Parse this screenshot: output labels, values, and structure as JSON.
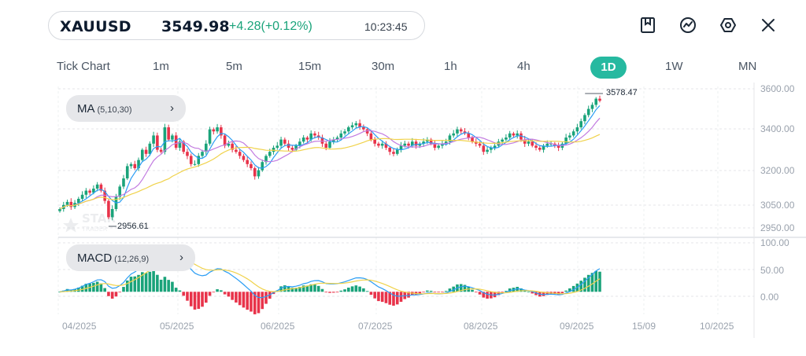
{
  "header": {
    "symbol": "XAUUSD",
    "price": "3549.98",
    "change": "+4.28(+0.12%)",
    "time": "10:23:45",
    "accent_up": "#1aa37a",
    "accent_down": "#e8334a"
  },
  "toolbar": {
    "icons": [
      "bookmark-icon",
      "indicator-icon",
      "settings-icon",
      "close-icon"
    ]
  },
  "timeframes": [
    {
      "label": "Tick Chart",
      "active": false
    },
    {
      "label": "1m",
      "active": false
    },
    {
      "label": "5m",
      "active": false
    },
    {
      "label": "15m",
      "active": false
    },
    {
      "label": "30m",
      "active": false
    },
    {
      "label": "1h",
      "active": false
    },
    {
      "label": "4h",
      "active": false
    },
    {
      "label": "1D",
      "active": true
    },
    {
      "label": "1W",
      "active": false
    },
    {
      "label": "MN",
      "active": false
    }
  ],
  "main_panel": {
    "indicator_name": "MA",
    "indicator_params": "(5,10,30)",
    "price_ticks": [
      "3600.00",
      "3400.00",
      "3200.00",
      "3050.00",
      "2950.00"
    ],
    "high_label": "3578.47",
    "low_label": "2956.61"
  },
  "macd_panel": {
    "indicator_name": "MACD",
    "indicator_params": "(12,26,9)",
    "ticks": [
      "100.00",
      "50.00",
      "0.00"
    ]
  },
  "date_labels": [
    "04/2025",
    "05/2025",
    "06/2025",
    "07/2025",
    "08/2025",
    "09/2025",
    "15/09",
    "10/2025"
  ],
  "watermark": {
    "line1": "STAR",
    "line2": "TRADER"
  },
  "chart_data": {
    "type": "candlestick",
    "instrument": "XAUUSD",
    "timeframe": "1D",
    "closes": [
      3020,
      3040,
      3055,
      3030,
      3050,
      3070,
      3090,
      3110,
      3100,
      3120,
      3140,
      3110,
      3060,
      2980,
      3020,
      3080,
      3130,
      3170,
      3230,
      3240,
      3220,
      3260,
      3310,
      3290,
      3340,
      3380,
      3310,
      3300,
      3420,
      3360,
      3380,
      3320,
      3350,
      3300,
      3280,
      3240,
      3240,
      3280,
      3300,
      3340,
      3410,
      3400,
      3420,
      3380,
      3330,
      3340,
      3310,
      3300,
      3280,
      3260,
      3240,
      3220,
      3180,
      3210,
      3250,
      3280,
      3300,
      3320,
      3330,
      3360,
      3340,
      3320,
      3310,
      3330,
      3350,
      3370,
      3360,
      3390,
      3380,
      3370,
      3340,
      3320,
      3350,
      3360,
      3370,
      3390,
      3400,
      3420,
      3430,
      3440,
      3420,
      3410,
      3390,
      3360,
      3340,
      3330,
      3340,
      3320,
      3300,
      3290,
      3310,
      3330,
      3340,
      3330,
      3350,
      3330,
      3340,
      3350,
      3360,
      3340,
      3320,
      3330,
      3340,
      3350,
      3380,
      3390,
      3410,
      3400,
      3390,
      3370,
      3350,
      3340,
      3330,
      3300,
      3310,
      3320,
      3330,
      3350,
      3360,
      3370,
      3390,
      3380,
      3390,
      3360,
      3340,
      3350,
      3330,
      3320,
      3310,
      3330,
      3340,
      3340,
      3330,
      3320,
      3340,
      3370,
      3380,
      3400,
      3420,
      3450,
      3480,
      3510,
      3530,
      3560,
      3549.98
    ],
    "ma_periods": [
      5,
      10,
      30
    ],
    "ma_colors": [
      "#2a9df4",
      "#c27be0",
      "#f0d24a"
    ],
    "y_range": [
      2920,
      3620
    ],
    "macd_params": [
      12,
      26,
      9
    ],
    "macd_range": [
      -45,
      110
    ]
  }
}
